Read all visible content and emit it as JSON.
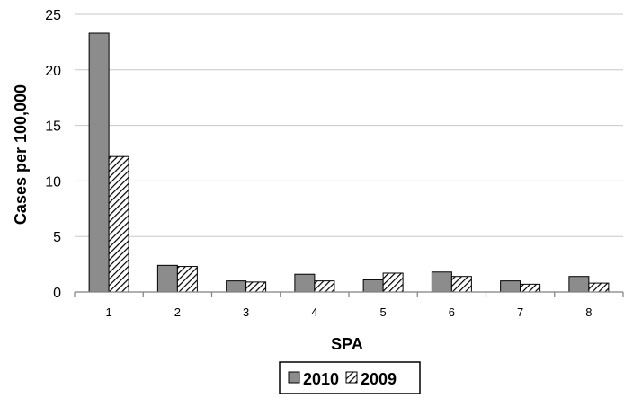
{
  "chart_data": {
    "type": "bar",
    "xlabel": "SPA",
    "ylabel": "Cases per 100,000",
    "categories": [
      "1",
      "2",
      "3",
      "4",
      "5",
      "6",
      "7",
      "8"
    ],
    "series": [
      {
        "name": "2010",
        "values": [
          23.3,
          2.4,
          1.0,
          1.6,
          1.1,
          1.8,
          1.0,
          1.4
        ],
        "fill": "#8c8c8c",
        "pattern": "solid"
      },
      {
        "name": "2009",
        "values": [
          12.2,
          2.3,
          0.9,
          1.0,
          1.7,
          1.4,
          0.7,
          0.8
        ],
        "fill": "#ffffff",
        "pattern": "diagonal-hatch"
      }
    ],
    "ylim": [
      0,
      25
    ],
    "yticks": [
      "0",
      "5",
      "10",
      "15",
      "20",
      "25"
    ],
    "grid": true,
    "legend_position": "bottom"
  }
}
